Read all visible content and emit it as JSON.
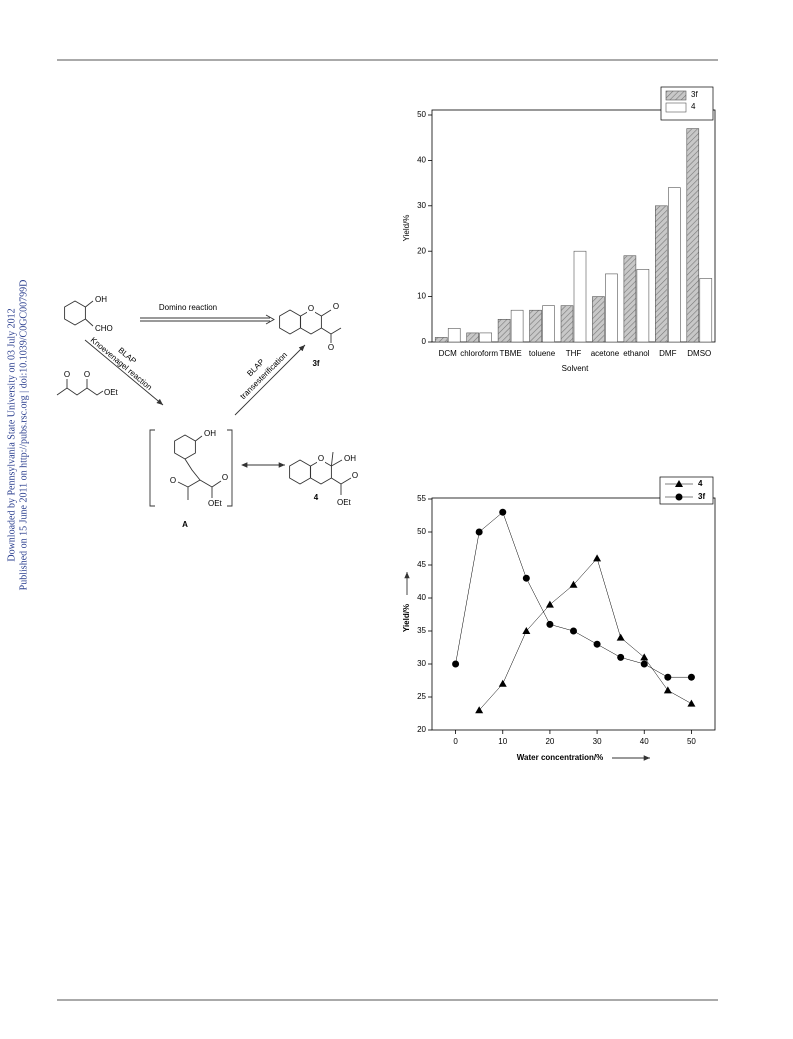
{
  "side_note": {
    "line_1": "Downloaded by Pennsylvania State University on 03 July 2012",
    "line_2": "Published on 15 June 2011 on http://pubs.rsc.org | doi:10.1039/C0GC00799D"
  },
  "scheme": {
    "labels": [
      "OH",
      "CHO",
      "Domino reaction",
      "O",
      "O",
      "O",
      "3f",
      "BLAP",
      "Knoevenagel reaction",
      "BLAP",
      "transesterification",
      "O",
      "O",
      "OEt",
      "OH",
      "O",
      "O",
      "OEt",
      "A",
      "O",
      "OH",
      "O",
      "OEt",
      "4"
    ]
  },
  "chart_data": [
    {
      "type": "bar",
      "xlabel": "Solvent",
      "ylabel": "Yield/%",
      "categories": [
        "DCM",
        "chloroform",
        "TBME",
        "toluene",
        "THF",
        "acetone",
        "ethanol",
        "DMF",
        "DMSO"
      ],
      "series": [
        {
          "name": "3f",
          "color": "#c8c8c8",
          "hatch": true,
          "values": [
            1,
            2,
            5,
            7,
            8,
            10,
            19,
            30,
            47
          ]
        },
        {
          "name": "4",
          "color": "#ffffff",
          "hatch": false,
          "values": [
            3,
            2,
            7,
            8,
            20,
            15,
            16,
            34,
            14
          ]
        }
      ],
      "ylim": [
        0,
        50
      ],
      "yticks": [
        0,
        10,
        20,
        30,
        40,
        50
      ],
      "legend": "top-right"
    },
    {
      "type": "line",
      "xlabel": "Water concentration/%",
      "ylabel": "Yield/%",
      "series": [
        {
          "name": "4",
          "color": "#000000",
          "marker": "triangle",
          "x": [
            5,
            10,
            15,
            20,
            25,
            30,
            35,
            40,
            45,
            50
          ],
          "values": [
            23,
            27,
            35,
            39,
            42,
            46,
            34,
            31,
            26,
            24
          ]
        },
        {
          "name": "3f",
          "color": "#000000",
          "marker": "circle",
          "x": [
            0,
            5,
            10,
            15,
            20,
            25,
            30,
            35,
            40,
            45,
            50
          ],
          "values": [
            30,
            50,
            53,
            43,
            36,
            35,
            33,
            31,
            30,
            28,
            28
          ]
        }
      ],
      "xlim": [
        -5,
        55
      ],
      "xticks": [
        0,
        10,
        20,
        30,
        40,
        50
      ],
      "ylim": [
        20,
        55
      ],
      "yticks": [
        20,
        25,
        30,
        35,
        40,
        45,
        50,
        55
      ],
      "legend": "top-right"
    }
  ]
}
